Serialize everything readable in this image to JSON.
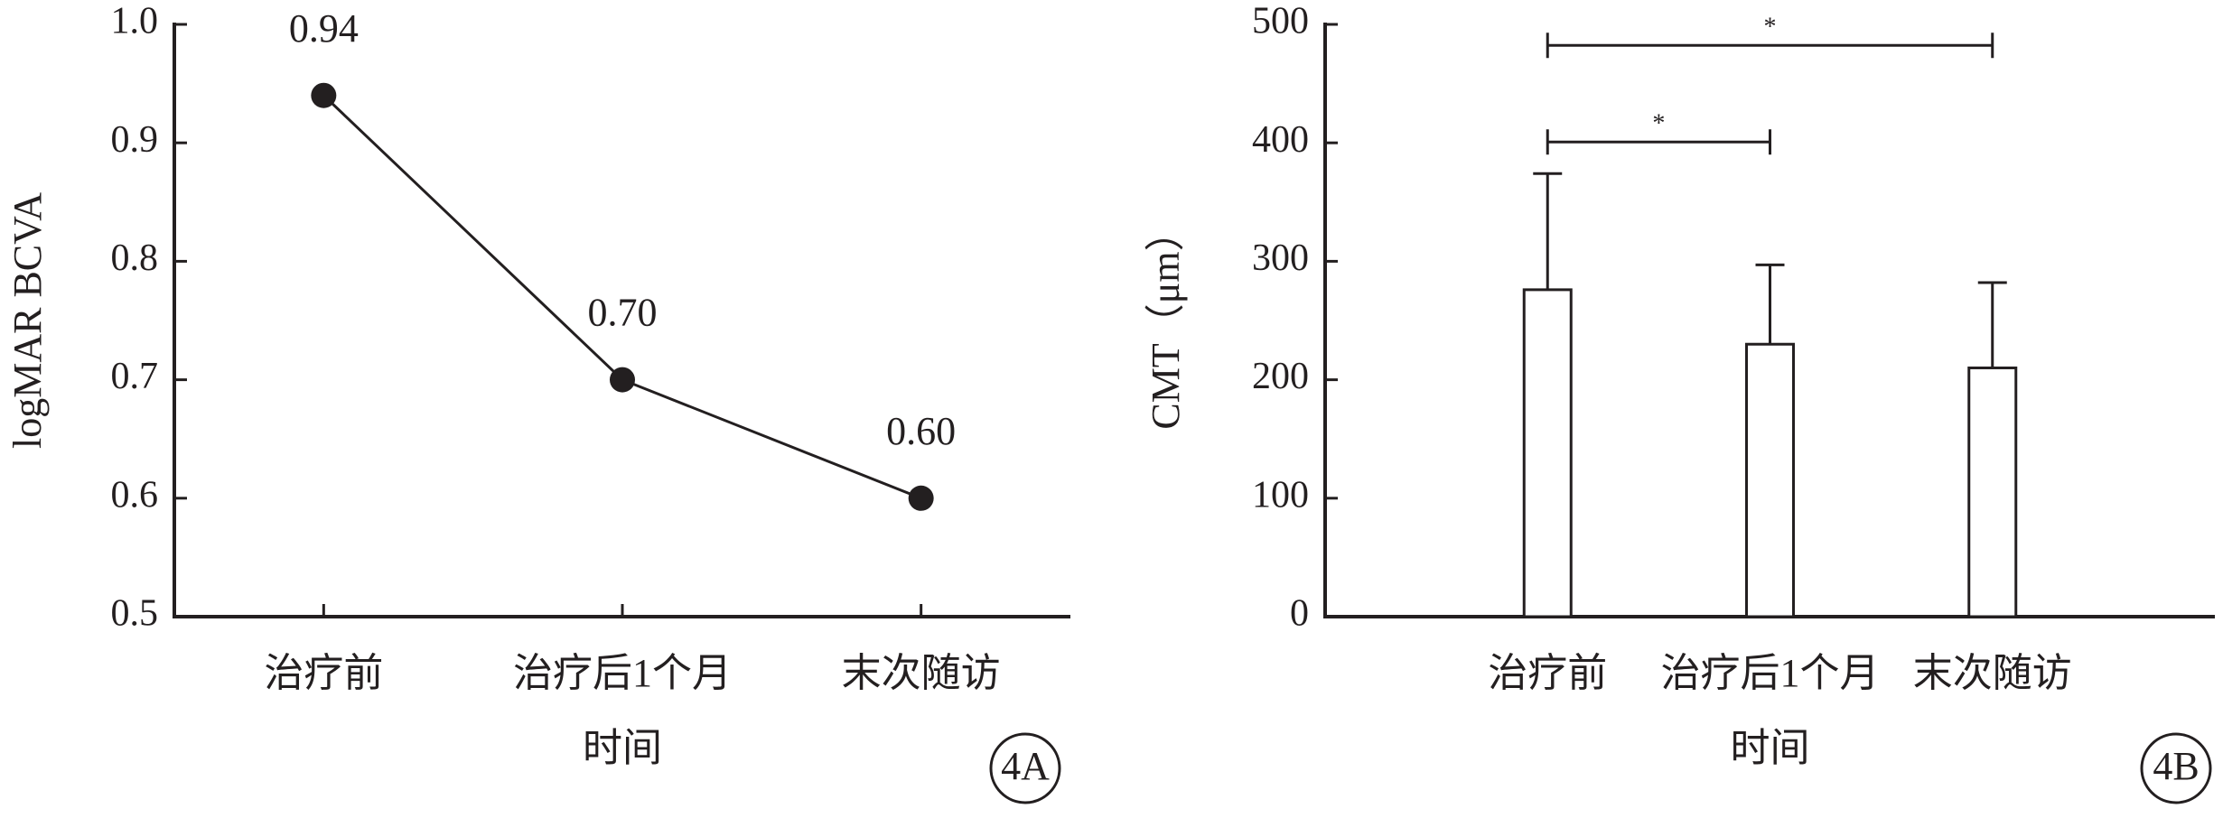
{
  "chart_data": [
    {
      "type": "line",
      "xlabel": "时间",
      "ylabel": "logMAR BCVA",
      "panel_label": "4A",
      "categories": [
        "治疗前",
        "治疗后1个月",
        "末次随访"
      ],
      "values": [
        0.94,
        0.7,
        0.6
      ],
      "value_labels": [
        "0.94",
        "0.70",
        "0.60"
      ],
      "color": "#231f20",
      "ylim": [
        0.5,
        1.0
      ],
      "yticks": [
        0.5,
        0.6,
        0.7,
        0.8,
        0.9,
        {
          "value": 1.0,
          "label": "1.0"
        }
      ]
    },
    {
      "type": "bar",
      "xlabel": "时间",
      "ylabel": "CMT（μm）",
      "panel_label": "4B",
      "categories": [
        "治疗前",
        "治疗后1个月",
        "末次随访"
      ],
      "values": [
        276,
        230,
        210
      ],
      "errors": [
        98,
        67,
        72
      ],
      "color": "#ffffff",
      "edgecolor": "#231f20",
      "significance": [
        {
          "label": "*",
          "between": [
            "治疗前",
            "治疗后1个月"
          ]
        },
        {
          "label": "*",
          "between": [
            "治疗前",
            "末次随访"
          ]
        }
      ],
      "ylim": [
        0,
        500
      ],
      "yticks": [
        0,
        100,
        200,
        300,
        400,
        500
      ]
    }
  ]
}
